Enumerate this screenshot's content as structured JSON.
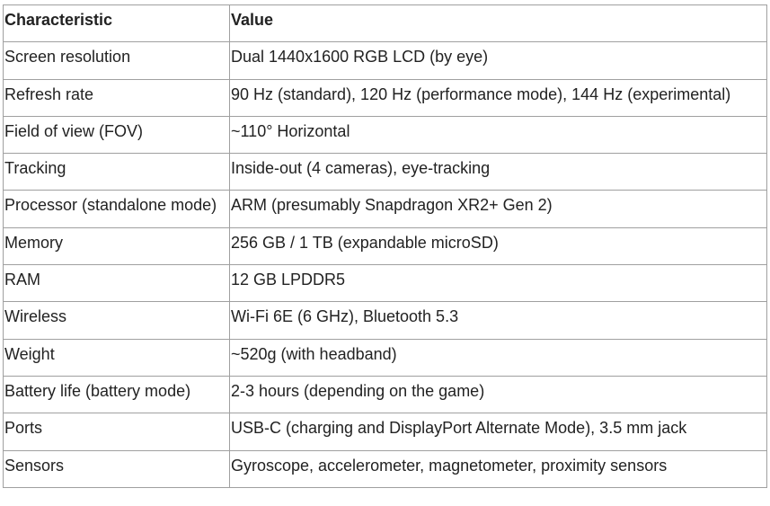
{
  "table": {
    "header": [
      "Characteristic",
      "Value"
    ],
    "rows": [
      [
        "Screen resolution",
        "Dual 1440x1600 RGB LCD (by eye)"
      ],
      [
        "Refresh rate",
        "90 Hz (standard), 120 Hz (performance mode), 144 Hz (experimental)"
      ],
      [
        "Field of view (FOV)",
        "~110° Horizontal"
      ],
      [
        "Tracking",
        "Inside-out (4 cameras), eye-tracking"
      ],
      [
        "Processor (standalone mode)",
        "ARM (presumably Snapdragon XR2+ Gen 2)"
      ],
      [
        "Memory",
        "256 GB / 1 TB (expandable microSD)"
      ],
      [
        "RAM",
        "12 GB LPDDR5"
      ],
      [
        "Wireless",
        "Wi-Fi 6E (6 GHz), Bluetooth 5.3"
      ],
      [
        "Weight",
        "~520g (with headband)"
      ],
      [
        "Battery life (battery mode)",
        "2-3 hours (depending on the game)"
      ],
      [
        "Ports",
        "USB-C (charging and DisplayPort Alternate Mode), 3.5 mm jack"
      ],
      [
        "Sensors",
        "Gyroscope, accelerometer, magnetometer, proximity sensors"
      ]
    ]
  }
}
